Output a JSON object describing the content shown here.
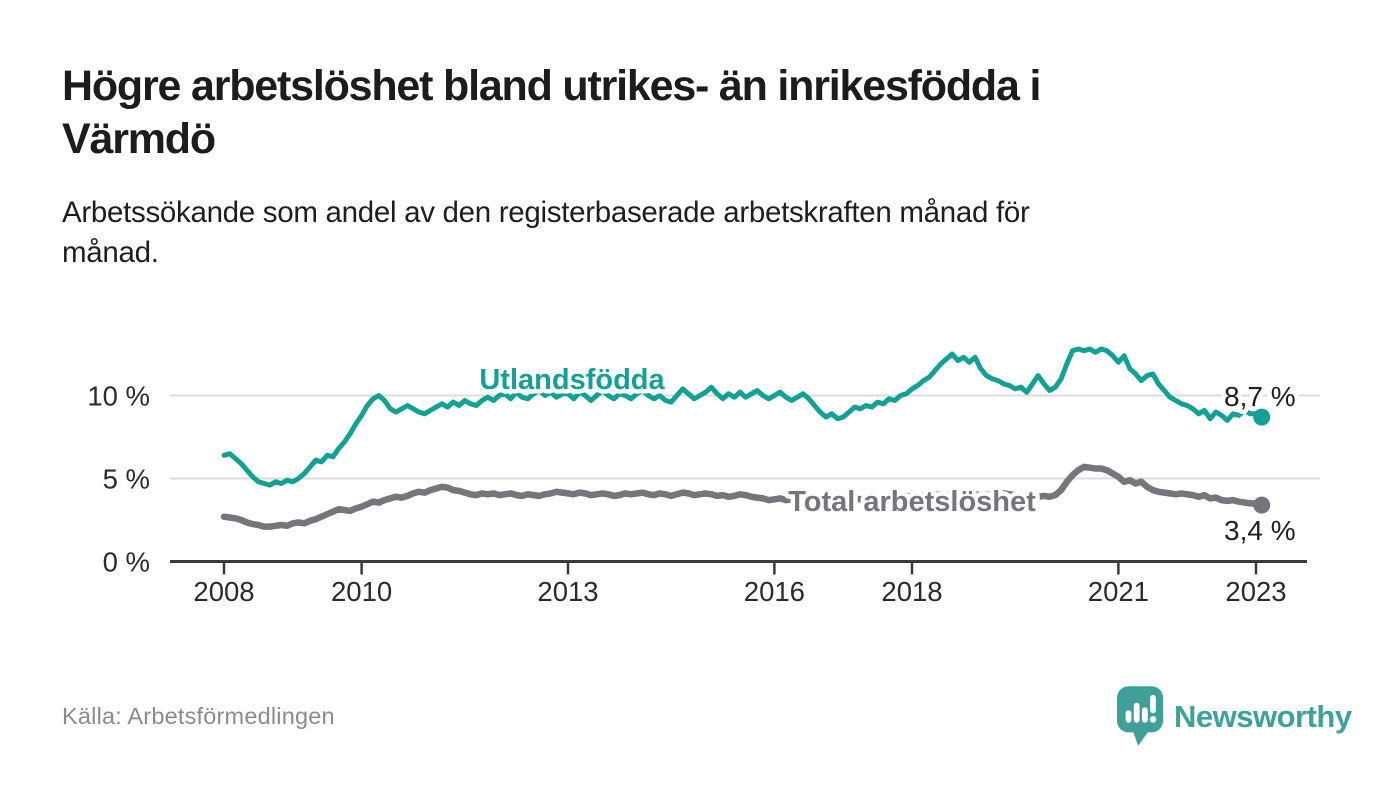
{
  "header": {
    "title_lines": [
      "Högre arbetslöshet bland utrikes- än inrikesfödda i",
      "Värmdö"
    ],
    "subtitle_lines": [
      "Arbetssökande som andel av den registerbaserade arbetskraften månad för",
      "månad."
    ]
  },
  "chart_data": {
    "type": "line",
    "title": "Högre arbetslöshet bland utrikes- än inrikesfödda i Värmdö",
    "subtitle": "Arbetssökande som andel av den registerbaserade arbetskraften månad för månad.",
    "unit": "%",
    "frequency": "monthly",
    "x_start": "2008-01",
    "x_end": "2023-02",
    "x_tick_years": [
      "2008",
      "2010",
      "2013",
      "2016",
      "2018",
      "2021",
      "2023"
    ],
    "y_ticks": [
      {
        "value": 0,
        "label": "0 %"
      },
      {
        "value": 5,
        "label": "5 %"
      },
      {
        "value": 10,
        "label": "10 %"
      }
    ],
    "ylim": [
      0,
      13.5
    ],
    "grid": "horizontal",
    "legend_position": "inline-labels",
    "series": [
      {
        "name": "Utlandsfödda",
        "color": "#14a195",
        "end_value": 8.7,
        "end_label": "8,7 %",
        "values": [
          6.4,
          6.5,
          6.2,
          5.9,
          5.5,
          5.1,
          4.8,
          4.7,
          4.6,
          4.8,
          4.7,
          4.9,
          4.8,
          5.0,
          5.3,
          5.7,
          6.1,
          6.0,
          6.4,
          6.3,
          6.8,
          7.2,
          7.7,
          8.3,
          8.8,
          9.4,
          9.8,
          10.0,
          9.7,
          9.2,
          9.0,
          9.2,
          9.4,
          9.2,
          9.0,
          8.9,
          9.1,
          9.3,
          9.5,
          9.3,
          9.6,
          9.4,
          9.7,
          9.5,
          9.4,
          9.7,
          9.9,
          9.7,
          10.0,
          10.1,
          9.8,
          10.2,
          9.9,
          9.8,
          10.1,
          10.3,
          10.0,
          10.2,
          9.9,
          10.1,
          10.1,
          9.8,
          10.2,
          10.0,
          9.7,
          10.0,
          10.3,
          10.0,
          9.8,
          10.1,
          10.0,
          9.8,
          10.1,
          10.3,
          10.0,
          9.8,
          10.0,
          9.7,
          9.6,
          10.0,
          10.4,
          10.1,
          9.8,
          10.0,
          10.2,
          10.5,
          10.1,
          9.8,
          10.1,
          9.9,
          10.2,
          9.9,
          10.1,
          10.3,
          10.0,
          9.8,
          10.0,
          10.2,
          9.9,
          9.7,
          9.9,
          10.1,
          9.8,
          9.4,
          9.0,
          8.7,
          8.9,
          8.6,
          8.7,
          9.0,
          9.3,
          9.2,
          9.4,
          9.3,
          9.6,
          9.5,
          9.8,
          9.7,
          10.0,
          10.1,
          10.4,
          10.6,
          10.9,
          11.1,
          11.5,
          11.9,
          12.2,
          12.5,
          12.1,
          12.3,
          12.0,
          12.3,
          11.6,
          11.2,
          11.0,
          10.9,
          10.7,
          10.6,
          10.4,
          10.5,
          10.2,
          10.7,
          11.2,
          10.7,
          10.3,
          10.5,
          11.0,
          11.9,
          12.7,
          12.8,
          12.7,
          12.8,
          12.6,
          12.8,
          12.7,
          12.4,
          12.0,
          12.4,
          11.6,
          11.3,
          10.9,
          11.2,
          11.3,
          10.7,
          10.3,
          9.9,
          9.7,
          9.5,
          9.4,
          9.2,
          8.9,
          9.1,
          8.6,
          9.0,
          8.8,
          8.5,
          8.9,
          8.8,
          9.1,
          8.9,
          8.9,
          8.7
        ]
      },
      {
        "name": "Total arbetslöshet",
        "color": "#77747c",
        "end_value": 3.4,
        "end_label": "3,4 %",
        "values": [
          2.7,
          2.65,
          2.6,
          2.5,
          2.35,
          2.25,
          2.2,
          2.1,
          2.1,
          2.15,
          2.2,
          2.15,
          2.3,
          2.35,
          2.3,
          2.45,
          2.55,
          2.7,
          2.85,
          3.0,
          3.15,
          3.1,
          3.05,
          3.2,
          3.3,
          3.45,
          3.6,
          3.55,
          3.7,
          3.8,
          3.9,
          3.85,
          3.95,
          4.1,
          4.2,
          4.15,
          4.3,
          4.4,
          4.5,
          4.45,
          4.3,
          4.25,
          4.15,
          4.05,
          4.0,
          4.1,
          4.05,
          4.1,
          4.0,
          4.05,
          4.1,
          4.0,
          3.95,
          4.05,
          4.0,
          3.95,
          4.05,
          4.1,
          4.2,
          4.15,
          4.1,
          4.05,
          4.15,
          4.1,
          4.0,
          4.05,
          4.1,
          4.05,
          3.95,
          4.0,
          4.1,
          4.05,
          4.1,
          4.15,
          4.05,
          4.0,
          4.1,
          4.05,
          3.95,
          4.05,
          4.15,
          4.1,
          4.0,
          4.05,
          4.1,
          4.05,
          3.95,
          4.0,
          3.9,
          3.95,
          4.05,
          4.0,
          3.9,
          3.85,
          3.8,
          3.7,
          3.75,
          3.8,
          3.7,
          3.75,
          3.7,
          3.75,
          3.7,
          3.65,
          3.7,
          3.75,
          3.7,
          3.75,
          3.7,
          3.75,
          3.8,
          3.75,
          3.8,
          3.85,
          3.8,
          3.85,
          3.9,
          3.85,
          3.9,
          3.95,
          3.9,
          3.95,
          4.0,
          3.95,
          4.0,
          4.05,
          4.0,
          4.05,
          4.0,
          4.05,
          4.0,
          4.05,
          4.0,
          4.05,
          4.0,
          4.05,
          4.1,
          4.05,
          4.0,
          3.95,
          4.0,
          3.95,
          3.9,
          3.95,
          3.9,
          4.0,
          4.3,
          4.8,
          5.2,
          5.5,
          5.7,
          5.65,
          5.6,
          5.6,
          5.5,
          5.3,
          5.1,
          4.8,
          4.9,
          4.7,
          4.8,
          4.5,
          4.3,
          4.2,
          4.15,
          4.1,
          4.05,
          4.1,
          4.05,
          4.0,
          3.9,
          4.0,
          3.8,
          3.85,
          3.7,
          3.65,
          3.7,
          3.6,
          3.55,
          3.5,
          3.5,
          3.4
        ]
      }
    ]
  },
  "footer": {
    "source": "Källa: Arbetsförmedlingen",
    "brand": "Newsworthy"
  },
  "colors": {
    "accent_teal": "#14a195",
    "line_gray": "#77747c",
    "brand_teal": "#3ea29b",
    "axis": "#3a3a3a",
    "grid": "#dcdcdc",
    "text_dark": "#1c1c1c",
    "text_muted": "#8a8a91"
  }
}
